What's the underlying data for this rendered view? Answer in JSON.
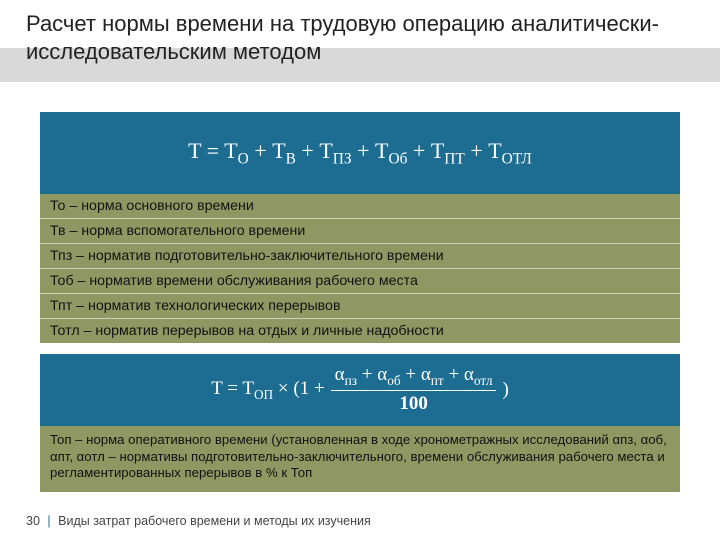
{
  "colors": {
    "title_band": "#d9d9d9",
    "formula_bg": "#1c6d91",
    "defs_bg": "#8f9862",
    "text": "#222222",
    "formula_text": "#ffffff"
  },
  "title": "Расчет нормы времени на трудовую операцию аналитически-исследовательским методом",
  "formula1_html": "T = T<sub>О</sub> + T<sub>В</sub> + T<sub>ПЗ</sub> + T<sub>Об</sub> + T<sub>ПТ</sub> + T<sub>ОТЛ</sub>",
  "defs": [
    "То – норма основного времени",
    "Тв – норма вспомогательного времени",
    "Тпз – норматив подготовительно-заключительного времени",
    "Тоб – норматив времени обслуживания рабочего места",
    "Тпт – норматив технологических перерывов",
    "Тотл – норматив перерывов на отдых и личные надобности"
  ],
  "formula2": {
    "lhs": "T = T<sub>ОП</sub> × (1 + ",
    "numerator": "α<sub>пз</sub> + α<sub>об</sub> + α<sub>пт</sub> + α<sub>отл</sub>",
    "denominator": "100",
    "rhs": ")"
  },
  "note": "Топ – норма оперативного времени (установленная в ходе хронометражных исследований αпз, αоб, αпт, αотл – нормативы подготовительно-заключительного, времени обслуживания рабочего места и регламентированных перерывов в % к Топ",
  "footer": {
    "page": "30",
    "text": "Виды затрат рабочего времени и методы их изучения"
  }
}
